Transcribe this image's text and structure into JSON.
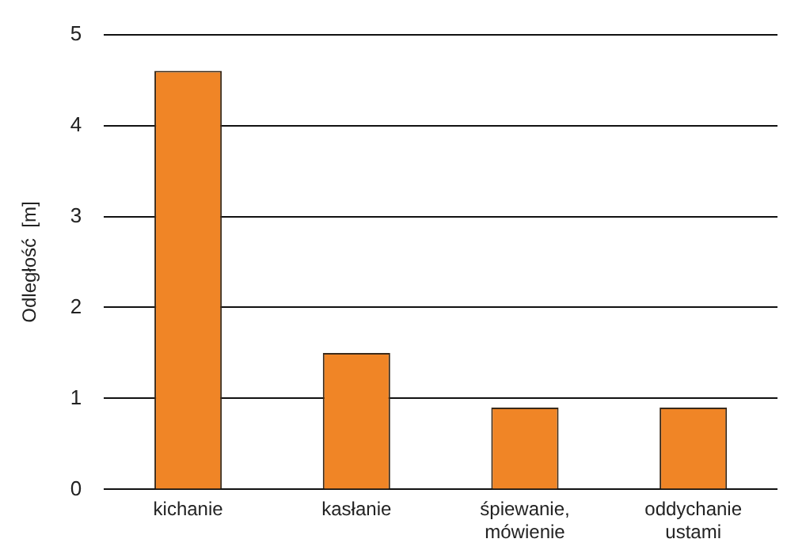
{
  "chart_data": {
    "type": "bar",
    "ylabel": "Odległość  [m]",
    "categories": [
      "kichanie",
      "kasłanie",
      "śpiewanie, mówienie",
      "oddychanie ustami"
    ],
    "values": [
      4.6,
      1.5,
      0.9,
      0.9
    ],
    "color": "#f08526",
    "ylim": [
      0,
      5
    ],
    "yticks": [
      0,
      1,
      2,
      3,
      4,
      5
    ],
    "grid": "y"
  }
}
